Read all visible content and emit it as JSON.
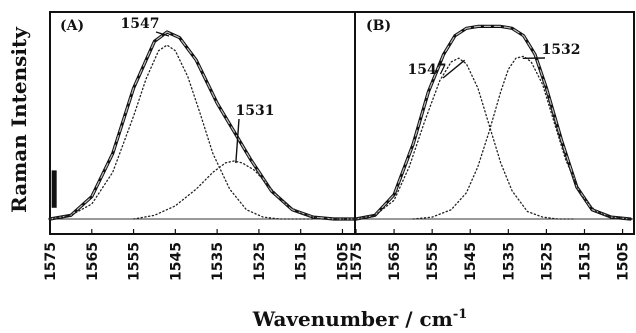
{
  "chart_data": {
    "type": "line",
    "ylabel": "Raman Intensity",
    "xlabel_main": "Wavenumber / cm",
    "xlabel_sup": "-1",
    "xlim": [
      1575,
      1502
    ],
    "xticks": [
      1575,
      1565,
      1555,
      1545,
      1535,
      1525,
      1515,
      1505
    ],
    "ylim": [
      0,
      1.12
    ],
    "x_reversed": true,
    "panels": [
      {
        "tag": "(A)",
        "series": [
          {
            "kind": "spectrum",
            "style": "solid-thick",
            "x": [
              1575,
              1570,
              1565,
              1560,
              1555,
              1550,
              1547,
              1544,
              1540,
              1535,
              1531,
              1527,
              1522,
              1517,
              1512,
              1507,
              1502
            ],
            "y": [
              0.0,
              0.02,
              0.12,
              0.35,
              0.7,
              0.95,
              1.0,
              0.97,
              0.85,
              0.62,
              0.47,
              0.32,
              0.15,
              0.05,
              0.01,
              0.0,
              0.0
            ]
          },
          {
            "kind": "fit",
            "style": "dashed",
            "x": [
              1575,
              1570,
              1565,
              1560,
              1555,
              1550,
              1547,
              1544,
              1540,
              1535,
              1531,
              1527,
              1522,
              1517,
              1512,
              1507,
              1502
            ],
            "y": [
              0.0,
              0.02,
              0.12,
              0.35,
              0.7,
              0.95,
              1.0,
              0.97,
              0.85,
              0.62,
              0.47,
              0.32,
              0.15,
              0.05,
              0.01,
              0.0,
              0.0
            ]
          },
          {
            "kind": "component",
            "style": "dotted",
            "peak_label": "1547",
            "x": [
              1575,
              1570,
              1565,
              1560,
              1555,
              1552,
              1549,
              1547,
              1545,
              1542,
              1539,
              1536,
              1532,
              1528,
              1524,
              1520,
              1516,
              1512
            ],
            "y": [
              0.0,
              0.02,
              0.08,
              0.25,
              0.55,
              0.75,
              0.9,
              0.93,
              0.9,
              0.76,
              0.56,
              0.35,
              0.16,
              0.05,
              0.01,
              0.0,
              0.0,
              0.0
            ]
          },
          {
            "kind": "component",
            "style": "dotted",
            "peak_label": "1531",
            "x": [
              1555,
              1550,
              1545,
              1540,
              1536,
              1533,
              1531,
              1529,
              1526,
              1522,
              1518,
              1514,
              1510,
              1506,
              1502
            ],
            "y": [
              0.0,
              0.02,
              0.07,
              0.16,
              0.25,
              0.3,
              0.31,
              0.3,
              0.26,
              0.16,
              0.07,
              0.02,
              0.0,
              0.0,
              0.0
            ]
          }
        ],
        "annotations": [
          {
            "text": "1547",
            "x": 1547,
            "y": 1.0
          },
          {
            "text": "1531",
            "x": 1531,
            "y": 0.31
          }
        ]
      },
      {
        "tag": "(B)",
        "series": [
          {
            "kind": "spectrum",
            "style": "solid-thick",
            "x": [
              1575,
              1570,
              1565,
              1560,
              1556,
              1552,
              1549,
              1546,
              1543,
              1540,
              1537,
              1534,
              1531,
              1528,
              1525,
              1521,
              1517,
              1513,
              1508,
              1503
            ],
            "y": [
              0.0,
              0.02,
              0.13,
              0.4,
              0.68,
              0.88,
              0.98,
              1.02,
              1.03,
              1.03,
              1.03,
              1.02,
              0.98,
              0.88,
              0.7,
              0.42,
              0.17,
              0.05,
              0.01,
              0.0
            ]
          },
          {
            "kind": "fit",
            "style": "dashed",
            "x": [
              1575,
              1570,
              1565,
              1560,
              1556,
              1552,
              1549,
              1546,
              1543,
              1540,
              1537,
              1534,
              1531,
              1528,
              1525,
              1521,
              1517,
              1513,
              1508,
              1503
            ],
            "y": [
              0.0,
              0.02,
              0.13,
              0.4,
              0.68,
              0.88,
              0.98,
              1.02,
              1.03,
              1.03,
              1.03,
              1.02,
              0.98,
              0.88,
              0.7,
              0.42,
              0.17,
              0.05,
              0.01,
              0.0
            ]
          },
          {
            "kind": "component",
            "style": "dotted",
            "peak_label": "1547",
            "x": [
              1575,
              1570,
              1565,
              1561,
              1557,
              1553,
              1550,
              1548,
              1546,
              1543,
              1540,
              1537,
              1534,
              1530,
              1526,
              1522,
              1518
            ],
            "y": [
              0.0,
              0.02,
              0.1,
              0.28,
              0.52,
              0.74,
              0.84,
              0.86,
              0.83,
              0.7,
              0.5,
              0.3,
              0.15,
              0.04,
              0.01,
              0.0,
              0.0
            ]
          },
          {
            "kind": "component",
            "style": "dotted",
            "peak_label": "1532",
            "x": [
              1560,
              1555,
              1550,
              1546,
              1543,
              1540,
              1537,
              1535,
              1533,
              1531,
              1529,
              1526,
              1523,
              1520,
              1516,
              1512,
              1508,
              1503
            ],
            "y": [
              0.0,
              0.01,
              0.05,
              0.14,
              0.28,
              0.47,
              0.68,
              0.8,
              0.86,
              0.87,
              0.84,
              0.72,
              0.52,
              0.32,
              0.13,
              0.04,
              0.01,
              0.0
            ]
          }
        ],
        "annotations": [
          {
            "text": "1547",
            "x": 1547,
            "y": 0.86
          },
          {
            "text": "1532",
            "x": 1532,
            "y": 0.87
          }
        ]
      }
    ],
    "scale_bar": {
      "panel": 0,
      "x": 1574,
      "y_from": 0.06,
      "y_to": 0.26
    }
  }
}
